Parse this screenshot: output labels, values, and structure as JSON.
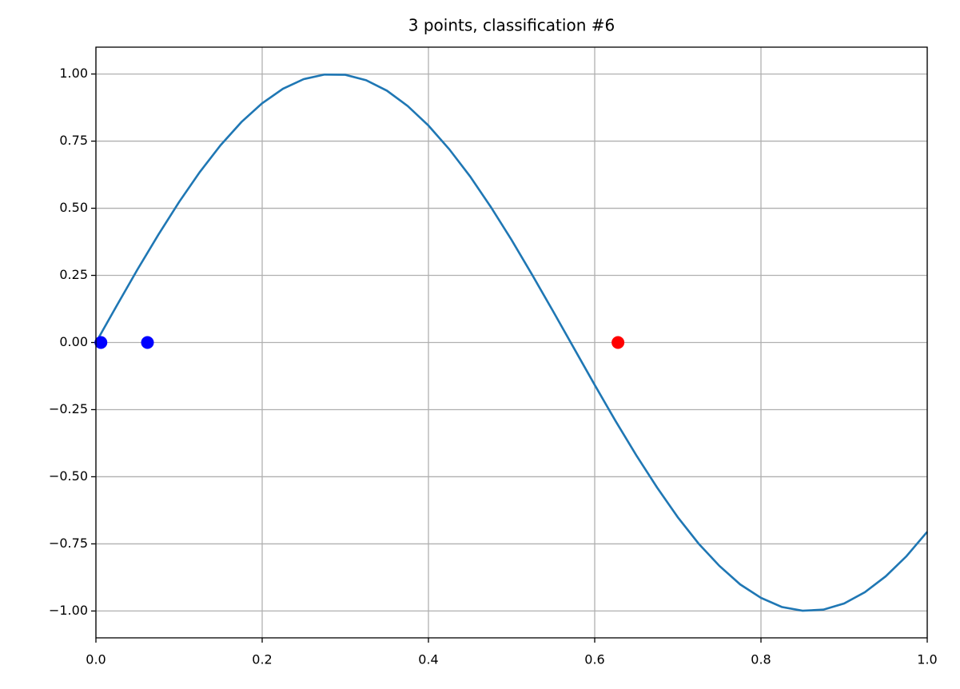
{
  "chart_data": {
    "type": "line",
    "title": "3 points, classification #6",
    "xlim": [
      0,
      1
    ],
    "ylim": [
      -1.1,
      1.1
    ],
    "xticks": [
      {
        "value": 0,
        "label": "0.0"
      },
      0.2,
      0.4,
      0.6,
      0.8,
      {
        "value": 1,
        "label": "1.0"
      }
    ],
    "yticks": [
      {
        "value": -1,
        "label": "−1.00"
      },
      {
        "value": -0.75,
        "label": "−0.75"
      },
      {
        "value": -0.5,
        "label": "−0.50"
      },
      {
        "value": -0.25,
        "label": "−0.25"
      },
      {
        "value": 0,
        "label": "0.00"
      },
      {
        "value": 0.25,
        "label": "0.25"
      },
      {
        "value": 0.5,
        "label": "0.50"
      },
      {
        "value": 0.75,
        "label": "0.75"
      },
      {
        "value": 1,
        "label": "1.00"
      }
    ],
    "grid": true,
    "series": [
      {
        "mode": "line",
        "color": "#1f77b4",
        "x": [
          0,
          0.025,
          0.05,
          0.075,
          0.1,
          0.125,
          0.15,
          0.175,
          0.2,
          0.225,
          0.25,
          0.275,
          0.3,
          0.325,
          0.35,
          0.375,
          0.4,
          0.425,
          0.45,
          0.475,
          0.5,
          0.525,
          0.55,
          0.575,
          0.6,
          0.625,
          0.65,
          0.675,
          0.7,
          0.725,
          0.75,
          0.775,
          0.8,
          0.825,
          0.85,
          0.875,
          0.9,
          0.925,
          0.95,
          0.975,
          1
        ],
        "values": [
          0,
          0.137,
          0.272,
          0.401,
          0.523,
          0.635,
          0.735,
          0.821,
          0.891,
          0.945,
          0.981,
          0.998,
          0.997,
          0.977,
          0.938,
          0.881,
          0.808,
          0.72,
          0.619,
          0.505,
          0.382,
          0.251,
          0.116,
          -0.021,
          -0.158,
          -0.292,
          -0.42,
          -0.54,
          -0.651,
          -0.749,
          -0.832,
          -0.901,
          -0.951,
          -0.985,
          -0.999,
          -0.995,
          -0.972,
          -0.93,
          -0.871,
          -0.796,
          -0.705
        ]
      },
      {
        "mode": "marker",
        "color": "#0000ff",
        "x": [
          0.006,
          0.062
        ],
        "values": [
          0,
          0
        ]
      },
      {
        "mode": "marker",
        "color": "#ff0000",
        "x": [
          0.628
        ],
        "values": [
          0
        ]
      }
    ]
  }
}
